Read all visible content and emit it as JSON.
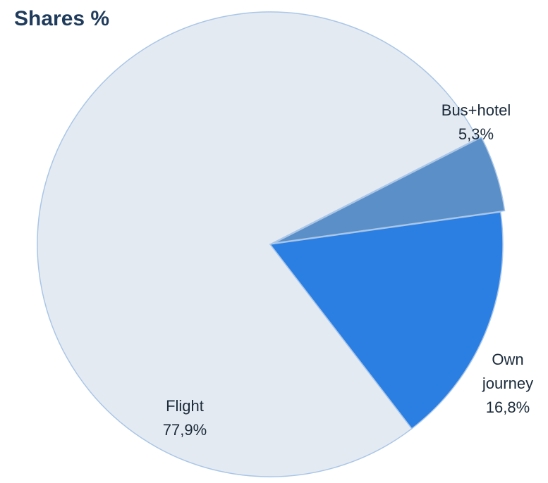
{
  "chart_data": {
    "type": "pie",
    "title": "Shares %",
    "categories": [
      "Flight",
      "Bus+hotel",
      "Own journey"
    ],
    "values": [
      77.9,
      5.3,
      16.8
    ],
    "value_labels": [
      "77,9%",
      "5,3%",
      "16,8%"
    ],
    "colors": [
      "#e4eaf1",
      "#5b8fc7",
      "#2b7fe3"
    ]
  }
}
